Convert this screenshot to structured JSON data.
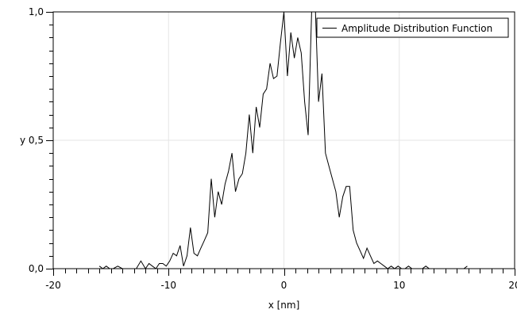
{
  "chart_data": {
    "type": "line",
    "title": "",
    "xlabel": "x [nm]",
    "ylabel": "y",
    "xlim": [
      -20,
      20
    ],
    "ylim": [
      0,
      1
    ],
    "xticks": [
      -20,
      -10,
      0,
      10,
      20
    ],
    "xtick_labels": [
      "-20",
      "-10",
      "0",
      "10",
      "20"
    ],
    "yticks": [
      0,
      0.5,
      1
    ],
    "ytick_labels": [
      "0,0",
      "y 0,5",
      "1,0"
    ],
    "grid": true,
    "legend": {
      "position": "top-right",
      "entries": [
        "Amplitude Distribution Function"
      ]
    },
    "series": [
      {
        "name": "Amplitude Distribution Function",
        "color": "#000000",
        "x": [
          -16.0,
          -15.7,
          -15.4,
          -15.1,
          -14.8,
          -14.4,
          -14.0,
          -13.6,
          -13.2,
          -12.8,
          -12.4,
          -12.0,
          -11.7,
          -11.4,
          -11.1,
          -10.8,
          -10.5,
          -10.2,
          -9.9,
          -9.6,
          -9.3,
          -9.0,
          -8.7,
          -8.4,
          -8.1,
          -7.8,
          -7.5,
          -7.2,
          -6.9,
          -6.6,
          -6.3,
          -6.0,
          -5.7,
          -5.4,
          -5.1,
          -4.8,
          -4.5,
          -4.2,
          -3.9,
          -3.6,
          -3.3,
          -3.0,
          -2.7,
          -2.4,
          -2.1,
          -1.8,
          -1.5,
          -1.2,
          -0.9,
          -0.6,
          -0.3,
          0.0,
          0.3,
          0.6,
          0.9,
          1.2,
          1.5,
          1.8,
          2.1,
          2.4,
          2.7,
          3.0,
          3.3,
          3.6,
          3.9,
          4.2,
          4.5,
          4.8,
          5.1,
          5.4,
          5.7,
          6.0,
          6.3,
          6.6,
          6.9,
          7.2,
          7.5,
          7.8,
          8.1,
          8.4,
          8.7,
          9.0,
          9.3,
          9.6,
          9.9,
          10.2,
          10.5,
          10.8,
          11.1,
          11.4,
          11.7,
          12.0,
          12.3,
          12.6,
          12.9,
          13.2,
          13.5,
          13.8,
          14.1,
          14.4,
          14.7,
          15.0,
          15.3,
          15.6,
          15.9
        ],
        "y": [
          0.01,
          0.0,
          0.01,
          0.0,
          0.0,
          0.01,
          0.0,
          0.0,
          0.0,
          0.0,
          0.03,
          0.0,
          0.02,
          0.01,
          0.0,
          0.02,
          0.02,
          0.01,
          0.03,
          0.06,
          0.05,
          0.09,
          0.01,
          0.05,
          0.16,
          0.06,
          0.05,
          0.08,
          0.11,
          0.14,
          0.35,
          0.2,
          0.3,
          0.25,
          0.33,
          0.38,
          0.45,
          0.3,
          0.35,
          0.37,
          0.45,
          0.6,
          0.45,
          0.63,
          0.55,
          0.68,
          0.7,
          0.8,
          0.74,
          0.75,
          0.88,
          1.0,
          0.75,
          0.92,
          0.82,
          0.9,
          0.84,
          0.65,
          0.52,
          1.0,
          1.05,
          0.65,
          0.76,
          0.45,
          0.4,
          0.35,
          0.3,
          0.2,
          0.28,
          0.32,
          0.32,
          0.15,
          0.1,
          0.07,
          0.04,
          0.08,
          0.05,
          0.02,
          0.03,
          0.02,
          0.01,
          0.0,
          0.01,
          0.0,
          0.01,
          0.0,
          0.0,
          0.01,
          0.0,
          0.0,
          0.0,
          0.0,
          0.01,
          0.0,
          0.0,
          0.0,
          0.0,
          0.0,
          0.0,
          0.0,
          0.0,
          0.0,
          0.0,
          0.0,
          0.01
        ]
      }
    ]
  }
}
